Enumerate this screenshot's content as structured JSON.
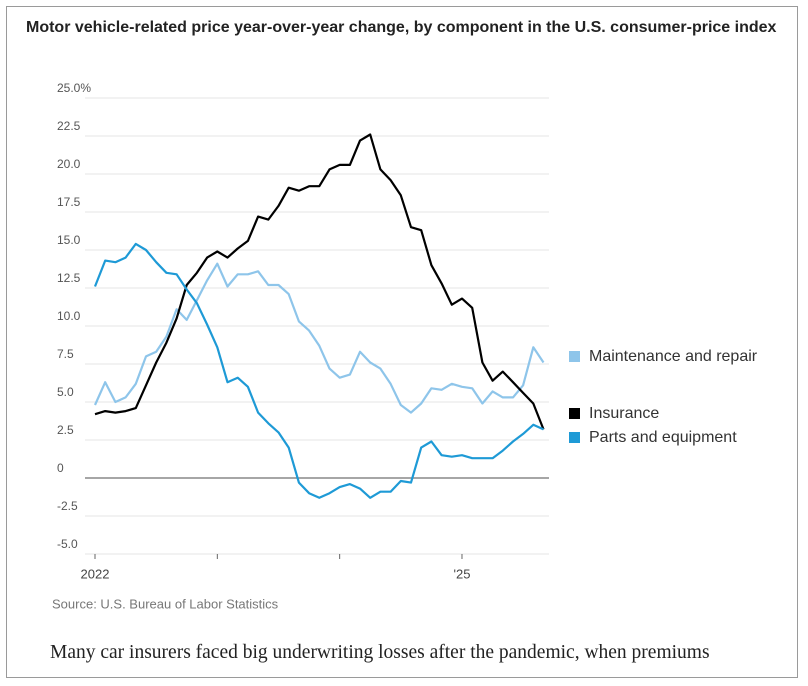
{
  "chart_data": {
    "type": "line",
    "title": "Motor vehicle-related price year-over-year change, by component in the U.S. consumer-price index",
    "source": "Source: U.S. Bureau of Labor Statistics",
    "categories": [
      "2022",
      null,
      null,
      null,
      null,
      null,
      null,
      null,
      null,
      null,
      null,
      null,
      null,
      null,
      null,
      null,
      null,
      null,
      null,
      null,
      null,
      null,
      null,
      null,
      null,
      null,
      null,
      null,
      null,
      null,
      null,
      null,
      null,
      null,
      null,
      null,
      "'25",
      null,
      null,
      null,
      null,
      null,
      null,
      null,
      null
    ],
    "ylim": [
      -5,
      25
    ],
    "yticks": [
      {
        "value": 25,
        "label": "25.0%"
      },
      22.5,
      {
        "value": 20,
        "label": "20.0"
      },
      17.5,
      {
        "value": 15,
        "label": "15.0"
      },
      12.5,
      {
        "value": 10,
        "label": "10.0"
      },
      7.5,
      {
        "value": 5,
        "label": "5.0"
      },
      2.5,
      0,
      -2.5,
      {
        "value": -5,
        "label": "-5.0"
      }
    ],
    "grid": true,
    "series": [
      {
        "name": "Maintenance and repair",
        "color": "#8ec5ea",
        "values": [
          4.8,
          6.3,
          5.0,
          5.3,
          6.2,
          8.0,
          8.3,
          9.3,
          11.1,
          10.4,
          11.7,
          13.0,
          14.1,
          12.6,
          13.4,
          13.4,
          13.6,
          12.7,
          12.7,
          12.1,
          10.3,
          9.7,
          8.7,
          7.2,
          6.6,
          6.8,
          8.3,
          7.6,
          7.2,
          6.2,
          4.8,
          4.3,
          4.9,
          5.9,
          5.8,
          6.2,
          6.0,
          5.9,
          4.9,
          5.7,
          5.3,
          5.3,
          6.1,
          8.6,
          7.6
        ]
      },
      {
        "name": "Insurance",
        "color": "#000000",
        "values": [
          4.2,
          4.4,
          4.3,
          4.4,
          4.6,
          6.1,
          7.6,
          8.9,
          10.5,
          12.7,
          13.5,
          14.5,
          14.9,
          14.5,
          15.1,
          15.6,
          17.2,
          17.0,
          17.9,
          19.1,
          18.9,
          19.2,
          19.2,
          20.3,
          20.6,
          20.6,
          22.2,
          22.6,
          20.3,
          19.6,
          18.6,
          16.5,
          16.3,
          14.0,
          12.8,
          11.4,
          11.8,
          11.2,
          7.6,
          6.4,
          7.0,
          6.3,
          5.6,
          4.9,
          3.2
        ]
      },
      {
        "name": "Parts and equipment",
        "color": "#1e9ad6",
        "values": [
          12.6,
          14.3,
          14.2,
          14.5,
          15.4,
          15.0,
          14.2,
          13.5,
          13.4,
          12.4,
          11.5,
          10.1,
          8.6,
          6.3,
          6.6,
          6.0,
          4.3,
          3.6,
          3.0,
          2.0,
          -0.3,
          -1.0,
          -1.3,
          -1.0,
          -0.6,
          -0.4,
          -0.7,
          -1.3,
          -0.9,
          -0.9,
          -0.2,
          -0.3,
          2.0,
          2.4,
          1.5,
          1.4,
          1.5,
          1.3,
          1.3,
          1.3,
          1.8,
          2.4,
          2.9,
          3.5,
          3.2
        ]
      }
    ]
  },
  "caption": "Many car insurers faced big underwriting losses after the pandemic, when premiums"
}
